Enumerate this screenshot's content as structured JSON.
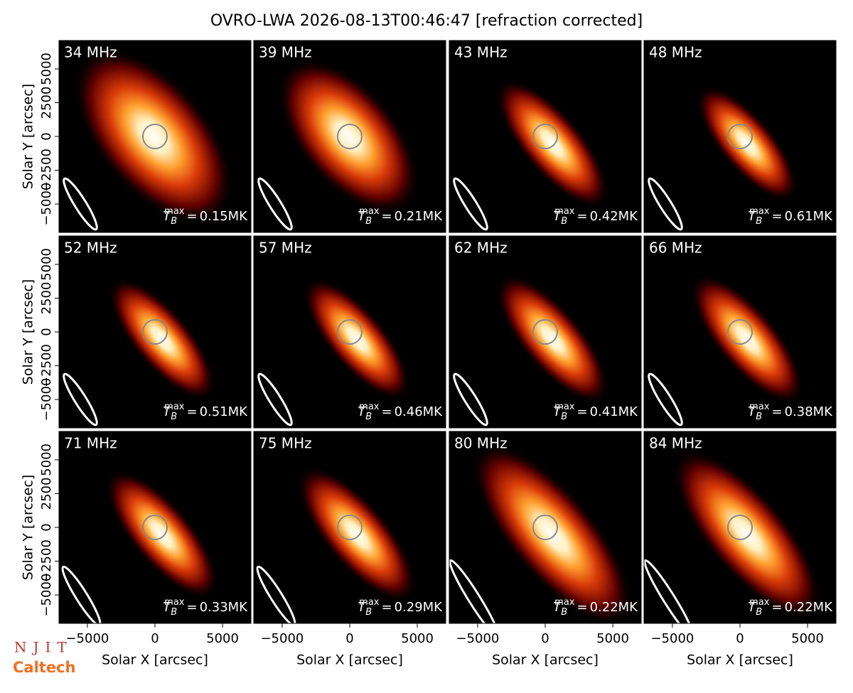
{
  "chart_data": {
    "type": "image",
    "title": "OVRO-LWA 2026-08-13T00:46:47 [refraction corrected]",
    "xlabel": "Solar X [arcsec]",
    "ylabel": "Solar Y [arcsec]",
    "xlim": [
      -7100,
      7100
    ],
    "ylim": [
      -7100,
      7100
    ],
    "xticks": [
      {
        "value": -5000,
        "label": "−5000"
      },
      0,
      5000
    ],
    "yticks": [
      {
        "value": -5000,
        "label": "−5000"
      },
      {
        "value": -2500,
        "label": "−2500"
      },
      0,
      2500,
      5000
    ],
    "tb_label": {
      "symbol": "T",
      "sub": "B",
      "sup": "max",
      "eq": "="
    },
    "panels": [
      {
        "freq": "34 MHz",
        "tb_max": "0.15MK"
      },
      {
        "freq": "39 MHz",
        "tb_max": "0.21MK"
      },
      {
        "freq": "43 MHz",
        "tb_max": "0.42MK"
      },
      {
        "freq": "48 MHz",
        "tb_max": "0.61MK"
      },
      {
        "freq": "52 MHz",
        "tb_max": "0.51MK"
      },
      {
        "freq": "57 MHz",
        "tb_max": "0.46MK"
      },
      {
        "freq": "62 MHz",
        "tb_max": "0.41MK"
      },
      {
        "freq": "66 MHz",
        "tb_max": "0.38MK"
      },
      {
        "freq": "71 MHz",
        "tb_max": "0.33MK"
      },
      {
        "freq": "75 MHz",
        "tb_max": "0.29MK"
      },
      {
        "freq": "80 MHz",
        "tb_max": "0.22MK"
      },
      {
        "freq": "84 MHz",
        "tb_max": "0.22MK"
      }
    ],
    "logos": [
      "NJIT",
      "Caltech"
    ]
  }
}
